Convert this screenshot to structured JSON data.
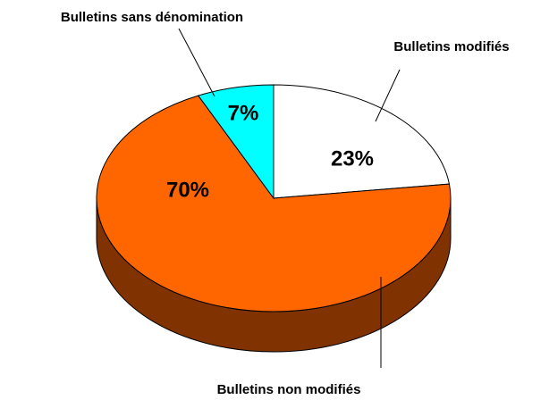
{
  "chart_data": {
    "type": "pie",
    "categories": [
      "Bulletins modifiés",
      "Bulletins non modifiés",
      "Bulletins sans dénomination"
    ],
    "values": [
      23,
      70,
      7
    ],
    "value_labels": [
      "23%",
      "70%",
      "7%"
    ],
    "colors": [
      "#ffffff",
      "#ff6600",
      "#00ffff"
    ]
  }
}
